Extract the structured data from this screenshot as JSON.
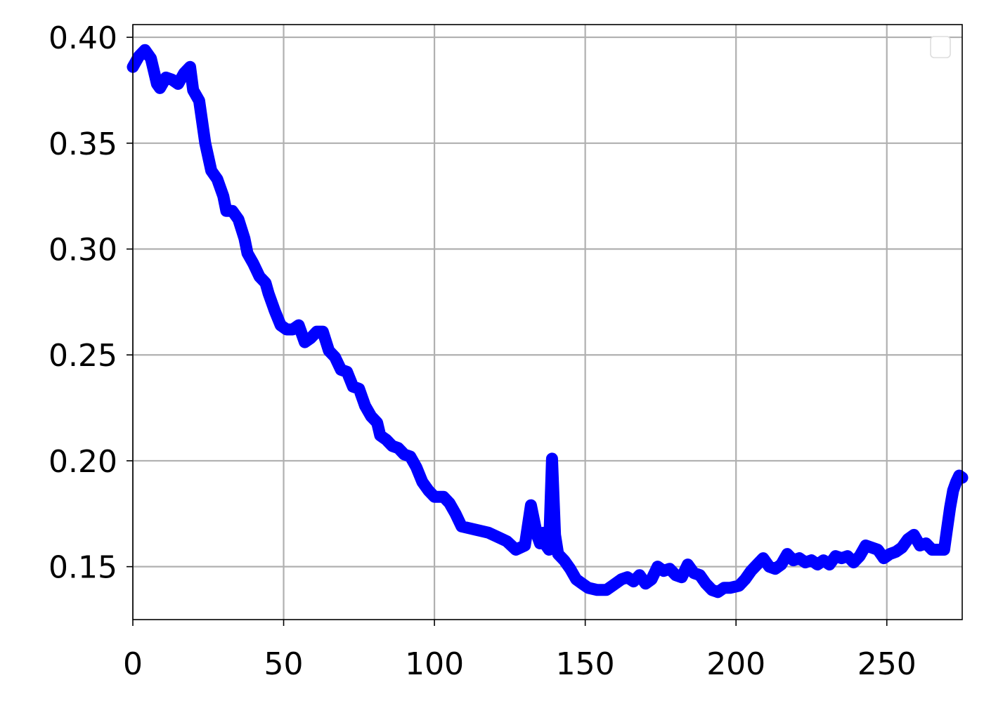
{
  "chart_data": {
    "type": "line",
    "title": "",
    "xlabel": "",
    "ylabel": "",
    "xlim": [
      0,
      275
    ],
    "ylim": [
      0.125,
      0.406
    ],
    "x_ticks": [
      0,
      50,
      100,
      150,
      200,
      250
    ],
    "x_tick_labels": [
      "0",
      "50",
      "100",
      "150",
      "200",
      "250"
    ],
    "y_ticks": [
      0.15,
      0.2,
      0.25,
      0.3,
      0.35,
      0.4
    ],
    "y_tick_labels": [
      "0.15",
      "0.20",
      "0.25",
      "0.30",
      "0.35",
      "0.40"
    ],
    "grid": true,
    "legend": {
      "placement": "top-right",
      "entries": []
    },
    "series": [
      {
        "color": "#0000ff",
        "points": [
          [
            0,
            0.386
          ],
          [
            2,
            0.391
          ],
          [
            4,
            0.394
          ],
          [
            6,
            0.39
          ],
          [
            8,
            0.378
          ],
          [
            9,
            0.376
          ],
          [
            11,
            0.381
          ],
          [
            13,
            0.38
          ],
          [
            15,
            0.378
          ],
          [
            17,
            0.383
          ],
          [
            19,
            0.386
          ],
          [
            20,
            0.375
          ],
          [
            22,
            0.37
          ],
          [
            24,
            0.35
          ],
          [
            26,
            0.337
          ],
          [
            28,
            0.333
          ],
          [
            30,
            0.325
          ],
          [
            31,
            0.318
          ],
          [
            33,
            0.318
          ],
          [
            35,
            0.314
          ],
          [
            37,
            0.305
          ],
          [
            38,
            0.298
          ],
          [
            40,
            0.293
          ],
          [
            42,
            0.287
          ],
          [
            44,
            0.284
          ],
          [
            45,
            0.279
          ],
          [
            47,
            0.271
          ],
          [
            49,
            0.264
          ],
          [
            51,
            0.262
          ],
          [
            53,
            0.262
          ],
          [
            55,
            0.264
          ],
          [
            57,
            0.256
          ],
          [
            59,
            0.258
          ],
          [
            61,
            0.261
          ],
          [
            63,
            0.261
          ],
          [
            65,
            0.252
          ],
          [
            67,
            0.249
          ],
          [
            69,
            0.243
          ],
          [
            71,
            0.242
          ],
          [
            73,
            0.235
          ],
          [
            75,
            0.234
          ],
          [
            77,
            0.226
          ],
          [
            79,
            0.221
          ],
          [
            81,
            0.218
          ],
          [
            82,
            0.212
          ],
          [
            84,
            0.21
          ],
          [
            86,
            0.207
          ],
          [
            88,
            0.206
          ],
          [
            90,
            0.203
          ],
          [
            92,
            0.202
          ],
          [
            94,
            0.197
          ],
          [
            96,
            0.19
          ],
          [
            98,
            0.186
          ],
          [
            100,
            0.183
          ],
          [
            103,
            0.183
          ],
          [
            105,
            0.18
          ],
          [
            107,
            0.175
          ],
          [
            109,
            0.169
          ],
          [
            112,
            0.168
          ],
          [
            115,
            0.167
          ],
          [
            118,
            0.166
          ],
          [
            121,
            0.164
          ],
          [
            124,
            0.162
          ],
          [
            127,
            0.158
          ],
          [
            130,
            0.16
          ],
          [
            132,
            0.179
          ],
          [
            133,
            0.172
          ],
          [
            134,
            0.165
          ],
          [
            135,
            0.161
          ],
          [
            136,
            0.166
          ],
          [
            137,
            0.16
          ],
          [
            138,
            0.158
          ],
          [
            139,
            0.201
          ],
          [
            140,
            0.165
          ],
          [
            141,
            0.156
          ],
          [
            143,
            0.153
          ],
          [
            145,
            0.149
          ],
          [
            147,
            0.144
          ],
          [
            149,
            0.142
          ],
          [
            151,
            0.14
          ],
          [
            154,
            0.139
          ],
          [
            157,
            0.139
          ],
          [
            159,
            0.141
          ],
          [
            162,
            0.144
          ],
          [
            164,
            0.145
          ],
          [
            166,
            0.143
          ],
          [
            168,
            0.146
          ],
          [
            170,
            0.142
          ],
          [
            172,
            0.144
          ],
          [
            174,
            0.15
          ],
          [
            176,
            0.148
          ],
          [
            178,
            0.149
          ],
          [
            180,
            0.146
          ],
          [
            182,
            0.145
          ],
          [
            184,
            0.151
          ],
          [
            186,
            0.147
          ],
          [
            188,
            0.146
          ],
          [
            190,
            0.142
          ],
          [
            192,
            0.139
          ],
          [
            194,
            0.138
          ],
          [
            196,
            0.14
          ],
          [
            198,
            0.14
          ],
          [
            201,
            0.141
          ],
          [
            203,
            0.144
          ],
          [
            205,
            0.148
          ],
          [
            207,
            0.151
          ],
          [
            209,
            0.154
          ],
          [
            211,
            0.15
          ],
          [
            213,
            0.149
          ],
          [
            215,
            0.151
          ],
          [
            217,
            0.156
          ],
          [
            219,
            0.153
          ],
          [
            221,
            0.154
          ],
          [
            223,
            0.152
          ],
          [
            225,
            0.153
          ],
          [
            227,
            0.151
          ],
          [
            229,
            0.153
          ],
          [
            231,
            0.151
          ],
          [
            233,
            0.155
          ],
          [
            235,
            0.154
          ],
          [
            237,
            0.155
          ],
          [
            239,
            0.152
          ],
          [
            241,
            0.155
          ],
          [
            243,
            0.16
          ],
          [
            245,
            0.159
          ],
          [
            247,
            0.158
          ],
          [
            249,
            0.154
          ],
          [
            251,
            0.156
          ],
          [
            253,
            0.157
          ],
          [
            255,
            0.159
          ],
          [
            257,
            0.163
          ],
          [
            259,
            0.165
          ],
          [
            261,
            0.16
          ],
          [
            263,
            0.161
          ],
          [
            265,
            0.158
          ],
          [
            267,
            0.158
          ],
          [
            269,
            0.158
          ],
          [
            270,
            0.168
          ],
          [
            271,
            0.178
          ],
          [
            272,
            0.186
          ],
          [
            273,
            0.19
          ],
          [
            274,
            0.193
          ],
          [
            275,
            0.192
          ]
        ]
      }
    ]
  }
}
